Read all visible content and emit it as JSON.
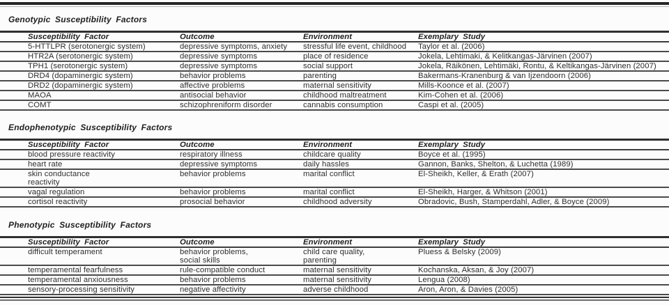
{
  "colors": {
    "rule_dark": "#2e2e2e",
    "rule_gray": "#6a6a6a",
    "text": "#2d2d2d"
  },
  "sections": [
    {
      "heading": "Genotypic Susceptibility Factors",
      "columns": [
        "Susceptibility Factor",
        "Outcome",
        "Environment",
        "Exemplary Study"
      ],
      "rows": [
        {
          "cells": [
            "5-HTTLPR (serotonergic system)",
            "depressive symptoms, anxiety",
            "stressful life event, childhood",
            "Taylor et al. (2006)"
          ]
        },
        {
          "cells": [
            "HTR2A (serotonergic system)",
            "depressive symptoms",
            "place of residence",
            "Jokela, Lehtimaki, & Kelitkangas-Järvinen (2007)"
          ]
        },
        {
          "cells": [
            "TPH1 (serotonergic system)",
            "depressive symptoms",
            "social support",
            "Jokela, Räikönen, Lehtimäki, Rontu, & Keltikangas-Järvinen (2007)"
          ]
        },
        {
          "cells": [
            "DRD4 (dopaminergic system)",
            "behavior problems",
            "parenting",
            "Bakermans-Kranenburg & van Ijzendoorn (2006)"
          ]
        },
        {
          "cells": [
            "DRD2 (dopaminergic system)",
            "affective problems",
            "maternal sensitivity",
            "Mills-Koonce et al. (2007)"
          ]
        },
        {
          "cells": [
            "MAOA",
            "antisocial behavior",
            "childhood maltreatment",
            "Kim-Cohen et al. (2006)"
          ]
        },
        {
          "cells": [
            "COMT",
            "schizophreniform disorder",
            "cannabis consumption",
            "Caspi et al. (2005)"
          ]
        }
      ]
    },
    {
      "heading": "Endophenotypic Susceptibility Factors",
      "columns": [
        "Susceptibility Factor",
        "Outcome",
        "Environment",
        "Exemplary Study"
      ],
      "rows": [
        {
          "cells": [
            "blood pressure reactivity",
            "respiratory illness",
            "childcare quality",
            "Boyce et al. (1995)"
          ]
        },
        {
          "cells": [
            "heart rate",
            "depressive symptoms",
            "daily hassles",
            "Gannon, Banks, Shelton, & Luchetta (1989)"
          ]
        },
        {
          "cells": [
            "skin conductance\nreactivity",
            "behavior problems",
            "marital conflict",
            "El-Sheikh, Keller, & Erath (2007)"
          ]
        },
        {
          "cells": [
            "vagal regulation",
            "behavior problems",
            "marital conflict",
            "El-Sheikh, Harger, & Whitson (2001)"
          ]
        },
        {
          "cells": [
            "cortisol reactivity",
            "prosocial behavior",
            "childhood adversity",
            "Obradovic, Bush, Stamperdahl, Adler, & Boyce (2009)"
          ]
        }
      ]
    },
    {
      "heading": "Phenotypic Susceptibility Factors",
      "columns": [
        "Susceptibility Factor",
        "Outcome",
        "Environment",
        "Exemplary Study"
      ],
      "rows": [
        {
          "cells": [
            "difficult temperament",
            "behavior problems,\nsocial skills",
            "child care quality,\nparenting",
            "Pluess & Belsky (2009)"
          ]
        },
        {
          "cells": [
            "temperamental fearfulness",
            "rule-compatible conduct",
            "maternal sensitivity",
            "Kochanska, Aksan, & Joy (2007)"
          ]
        },
        {
          "cells": [
            "temperamental anxiousness",
            "behavior problems",
            "maternal sensitivity",
            "Lengua (2008)"
          ]
        },
        {
          "cells": [
            "sensory-processing sensitivity",
            "negative affectivity",
            "adverse childhood",
            "Aron, Aron, & Davies (2005)"
          ]
        }
      ]
    }
  ]
}
